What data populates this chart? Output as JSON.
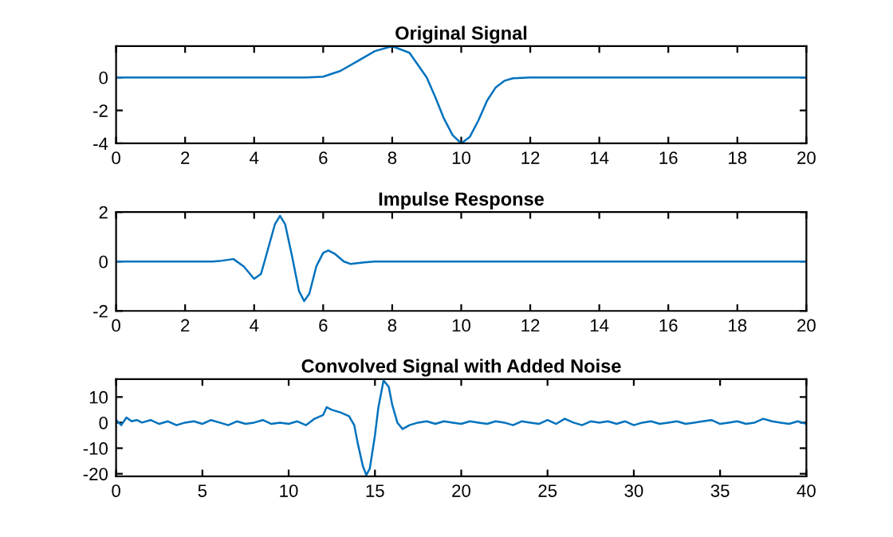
{
  "chart_data": [
    {
      "type": "line",
      "title": "Original Signal",
      "xlim": [
        0,
        20
      ],
      "ylim": [
        -4,
        1.9
      ],
      "xticks": [
        0,
        2,
        4,
        6,
        8,
        10,
        12,
        14,
        16,
        18,
        20
      ],
      "yticks": [
        -4,
        -2,
        0
      ],
      "grid": false,
      "legend": false,
      "series": [
        {
          "color": "#0072bd",
          "x": [
            0,
            2,
            4,
            5.5,
            6,
            6.5,
            7,
            7.5,
            8,
            8.5,
            9,
            9.25,
            9.5,
            9.75,
            10,
            10.25,
            10.5,
            10.75,
            11,
            11.25,
            11.5,
            12,
            14,
            16,
            18,
            20
          ],
          "values": [
            0,
            0,
            0,
            0,
            0.05,
            0.4,
            1.0,
            1.6,
            1.9,
            1.5,
            0,
            -1.2,
            -2.5,
            -3.5,
            -4,
            -3.6,
            -2.6,
            -1.4,
            -0.6,
            -0.2,
            -0.05,
            0,
            0,
            0,
            0,
            0
          ]
        }
      ]
    },
    {
      "type": "line",
      "title": "Impulse Response",
      "xlim": [
        0,
        20
      ],
      "ylim": [
        -2,
        2
      ],
      "xticks": [
        0,
        2,
        4,
        6,
        8,
        10,
        12,
        14,
        16,
        18,
        20
      ],
      "yticks": [
        -2,
        0,
        2
      ],
      "grid": false,
      "legend": false,
      "series": [
        {
          "color": "#0072bd",
          "x": [
            0,
            2.8,
            3,
            3.4,
            3.7,
            4,
            4.2,
            4.4,
            4.6,
            4.75,
            4.9,
            5.1,
            5.3,
            5.45,
            5.6,
            5.8,
            6,
            6.15,
            6.35,
            6.6,
            6.8,
            7.2,
            7.5,
            20
          ],
          "values": [
            0,
            0,
            0.02,
            0.1,
            -0.2,
            -0.7,
            -0.5,
            0.5,
            1.5,
            1.85,
            1.5,
            0.2,
            -1.2,
            -1.6,
            -1.3,
            -0.2,
            0.35,
            0.45,
            0.3,
            0,
            -0.1,
            -0.03,
            0,
            0
          ]
        }
      ]
    },
    {
      "type": "line",
      "title": "Convolved Signal with Added Noise",
      "xlim": [
        0,
        40
      ],
      "ylim": [
        -21,
        17
      ],
      "xticks": [
        0,
        5,
        10,
        15,
        20,
        25,
        30,
        35,
        40
      ],
      "yticks": [
        -20,
        -10,
        0,
        10
      ],
      "grid": false,
      "legend": false,
      "series": [
        {
          "color": "#0072bd",
          "x": [
            0,
            0.3,
            0.6,
            0.9,
            1.2,
            1.5,
            2,
            2.5,
            3,
            3.5,
            4,
            4.5,
            5,
            5.5,
            6,
            6.5,
            7,
            7.5,
            8,
            8.5,
            9,
            9.5,
            10,
            10.5,
            11,
            11.5,
            12,
            12.2,
            12.5,
            13,
            13.5,
            13.8,
            14,
            14.3,
            14.5,
            14.7,
            15,
            15.2,
            15.5,
            15.8,
            16,
            16.3,
            16.6,
            17,
            17.5,
            18,
            18.5,
            19,
            19.5,
            20,
            20.5,
            21,
            21.5,
            22,
            22.5,
            23,
            23.5,
            24,
            24.5,
            25,
            25.5,
            26,
            26.5,
            27,
            27.5,
            28,
            28.5,
            29,
            29.5,
            30,
            30.5,
            31,
            31.5,
            32,
            32.5,
            33,
            33.5,
            34,
            34.5,
            35,
            35.5,
            36,
            36.5,
            37,
            37.5,
            38,
            38.5,
            39,
            39.5,
            40
          ],
          "values": [
            1,
            -1,
            2,
            0.5,
            1,
            0,
            1,
            -0.5,
            0.5,
            -1,
            0,
            0.5,
            -0.5,
            1,
            0,
            -1,
            0.5,
            -0.5,
            0,
            1,
            -0.5,
            0,
            -0.5,
            0.5,
            -1,
            1.5,
            3,
            6,
            5,
            4,
            2.5,
            -1,
            -8,
            -17,
            -20.5,
            -18,
            -5,
            6,
            16.5,
            14,
            7,
            0,
            -2.5,
            -1,
            0,
            0.5,
            -0.5,
            0.5,
            0,
            -0.5,
            0.5,
            0,
            -0.5,
            0.5,
            0,
            -1,
            0.5,
            0,
            -0.5,
            1,
            -0.5,
            1.5,
            0,
            -1,
            0.5,
            0,
            0.5,
            -0.5,
            0.5,
            -1,
            0,
            0.5,
            -0.5,
            0,
            0.5,
            -0.5,
            0,
            0.5,
            1,
            -0.5,
            0,
            0.5,
            -0.5,
            0,
            1.5,
            0.5,
            0,
            -0.5,
            0.5,
            -0.5
          ]
        }
      ]
    }
  ]
}
